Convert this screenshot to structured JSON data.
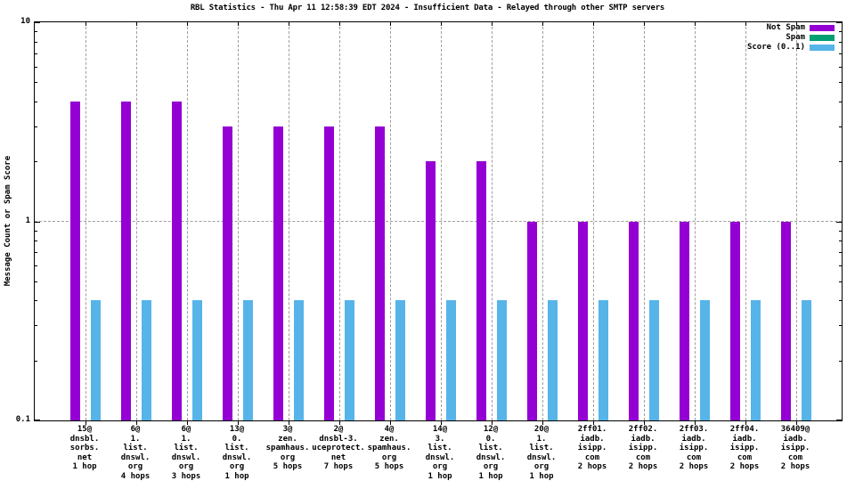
{
  "title": "RBL Statistics - Thu Apr 11 12:58:39 EDT 2024 - Insufficient Data - Relayed through other SMTP servers",
  "y_axis": {
    "label": "Message Count or Spam Score",
    "ticks": [
      "10",
      "1",
      "0.1"
    ]
  },
  "legend": [
    {
      "label": "Not Spam",
      "color": "#9400d3"
    },
    {
      "label": "Spam",
      "color": "#009e73"
    },
    {
      "label": "Score (0..1)",
      "color": "#56b4e9"
    }
  ],
  "chart_data": {
    "type": "bar",
    "title": "RBL Statistics - Thu Apr 11 12:58:39 EDT 2024 - Insufficient Data - Relayed through other SMTP servers",
    "ylabel": "Message Count or Spam Score",
    "scale": "log",
    "ylim": [
      0.1,
      10
    ],
    "ytick_values": [
      10,
      1,
      0.1
    ],
    "ytick_labels": [
      "10",
      "1",
      "0.1"
    ],
    "grid": true,
    "grid_color": "#9e9e9e",
    "legend_position": "top-right",
    "categories": [
      [
        "15@",
        "dnsbl.",
        "sorbs.",
        "net",
        "1 hop"
      ],
      [
        "6@",
        "1.",
        "list.",
        "dnswl.",
        "org",
        "4 hops"
      ],
      [
        "6@",
        "1.",
        "list.",
        "dnswl.",
        "org",
        "3 hops"
      ],
      [
        "13@",
        "0.",
        "list.",
        "dnswl.",
        "org",
        "1 hop"
      ],
      [
        "3@",
        "zen.",
        "spamhaus.",
        "org",
        "5 hops"
      ],
      [
        "2@",
        "dnsbl-3.",
        "uceprotect.",
        "net",
        "7 hops"
      ],
      [
        "4@",
        "zen.",
        "spamhaus.",
        "org",
        "5 hops"
      ],
      [
        "14@",
        "3.",
        "list.",
        "dnswl.",
        "org",
        "1 hop"
      ],
      [
        "12@",
        "0.",
        "list.",
        "dnswl.",
        "org",
        "1 hop"
      ],
      [
        "20@",
        "1.",
        "list.",
        "dnswl.",
        "org",
        "1 hop"
      ],
      [
        "2ff01.",
        "iadb.",
        "isipp.",
        "com",
        "2 hops"
      ],
      [
        "2ff02.",
        "iadb.",
        "isipp.",
        "com",
        "2 hops"
      ],
      [
        "2ff03.",
        "iadb.",
        "isipp.",
        "com",
        "2 hops"
      ],
      [
        "2ff04.",
        "iadb.",
        "isipp.",
        "com",
        "2 hops"
      ],
      [
        "36409@",
        "iadb.",
        "isipp.",
        "com",
        "2 hops"
      ]
    ],
    "series": [
      {
        "name": "Not Spam",
        "color": "#9400d3",
        "values": [
          4,
          4,
          4,
          3,
          3,
          3,
          3,
          2,
          2,
          1,
          1,
          1,
          1,
          1,
          1
        ]
      },
      {
        "name": "Spam",
        "color": "#009e73",
        "values": [
          0,
          0,
          0,
          0,
          0,
          0,
          0,
          0,
          0,
          0,
          0,
          0,
          0,
          0,
          0
        ]
      },
      {
        "name": "Score (0..1)",
        "color": "#56b4e9",
        "values": [
          0.4,
          0.4,
          0.4,
          0.4,
          0.4,
          0.4,
          0.4,
          0.4,
          0.4,
          0.4,
          0.4,
          0.4,
          0.4,
          0.4,
          0.4
        ]
      }
    ]
  }
}
